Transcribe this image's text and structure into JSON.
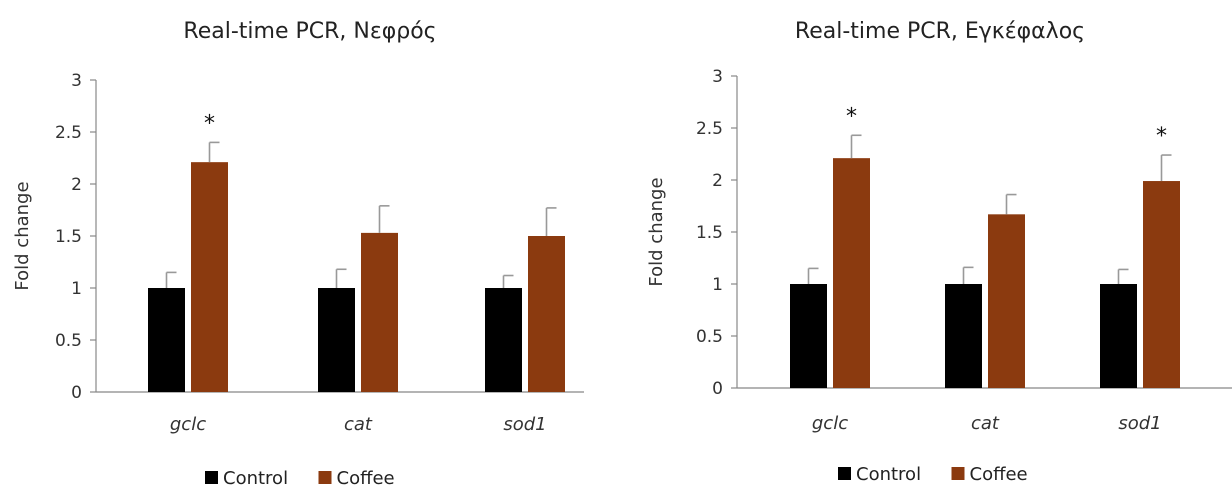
{
  "chart_data": [
    {
      "type": "bar",
      "title": "Real-time PCR, Νεφρός",
      "xlabel": "",
      "ylabel": "Fold change",
      "ylim": [
        0,
        3
      ],
      "yticks": [
        "0",
        "0.5",
        "1",
        "1.5",
        "2",
        "2.5",
        "3"
      ],
      "categories": [
        "gclc",
        "cat",
        "sod1"
      ],
      "series": [
        {
          "name": "Control",
          "color": "#000000",
          "values": [
            1.0,
            1.0,
            1.0
          ],
          "errors": [
            0.15,
            0.18,
            0.12
          ]
        },
        {
          "name": "Coffee",
          "color": "#8b3a0f",
          "values": [
            2.21,
            1.53,
            1.5
          ],
          "errors": [
            0.19,
            0.26,
            0.27
          ]
        }
      ],
      "annotations": [
        {
          "series": "Coffee",
          "category": "gclc",
          "text": "*"
        }
      ],
      "grid": false,
      "legend": "bottom"
    },
    {
      "type": "bar",
      "title": "Real-time PCR, Εγκέφαλος",
      "xlabel": "",
      "ylabel": "Fold change",
      "ylim": [
        0,
        3
      ],
      "yticks": [
        "0",
        "0.5",
        "1",
        "1.5",
        "2",
        "2.5",
        "3"
      ],
      "categories": [
        "gclc",
        "cat",
        "sod1"
      ],
      "series": [
        {
          "name": "Control",
          "color": "#000000",
          "values": [
            1.0,
            1.0,
            1.0
          ],
          "errors": [
            0.15,
            0.16,
            0.14
          ]
        },
        {
          "name": "Coffee",
          "color": "#8b3a0f",
          "values": [
            2.21,
            1.67,
            1.99
          ],
          "errors": [
            0.22,
            0.19,
            0.25
          ]
        }
      ],
      "annotations": [
        {
          "series": "Coffee",
          "category": "gclc",
          "text": "*"
        },
        {
          "series": "Coffee",
          "category": "sod1",
          "text": "*"
        }
      ],
      "grid": false,
      "legend": "bottom"
    }
  ]
}
